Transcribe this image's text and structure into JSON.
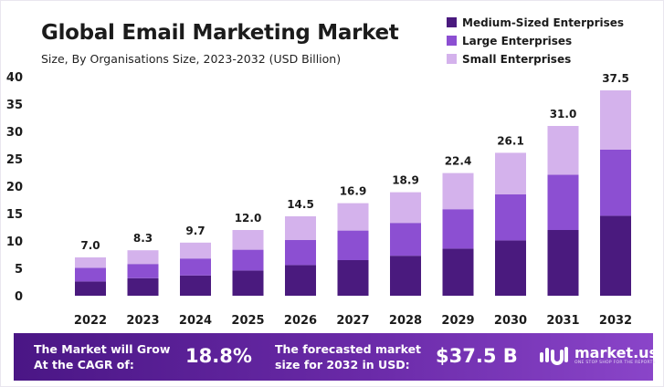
{
  "header": {
    "title": "Global Email Marketing Market",
    "subtitle": "Size, By Organisations Size, 2023-2032 (USD Billion)"
  },
  "colors": {
    "medium": "#4a1a7e",
    "large": "#8c4fd2",
    "small": "#d4b2ec",
    "banner_start": "#4a1685",
    "banner_end": "#8a45c9"
  },
  "chart_data": {
    "type": "bar",
    "stacked": true,
    "categories": [
      "2022",
      "2023",
      "2024",
      "2025",
      "2026",
      "2027",
      "2028",
      "2029",
      "2030",
      "2031",
      "2032"
    ],
    "series": [
      {
        "name": "Medium-Sized Enterprises",
        "color": "#4a1a7e",
        "values": [
          2.6,
          3.2,
          3.7,
          4.6,
          5.6,
          6.5,
          7.3,
          8.6,
          10.1,
          12.0,
          14.6
        ]
      },
      {
        "name": "Large Enterprises",
        "color": "#8c4fd2",
        "values": [
          2.5,
          2.6,
          3.1,
          3.8,
          4.6,
          5.4,
          6.0,
          7.2,
          8.4,
          10.1,
          12.1
        ]
      },
      {
        "name": "Small Enterprises",
        "color": "#d4b2ec",
        "values": [
          1.9,
          2.5,
          2.9,
          3.6,
          4.3,
          5.0,
          5.6,
          6.6,
          7.6,
          8.9,
          10.8
        ]
      }
    ],
    "totals": [
      "7.0",
      "8.3",
      "9.7",
      "12.0",
      "14.5",
      "16.9",
      "18.9",
      "22.4",
      "26.1",
      "31.0",
      "37.5"
    ],
    "yticks": [
      "0",
      "5",
      "10",
      "15",
      "20",
      "25",
      "30",
      "35",
      "40"
    ],
    "ylim": [
      0,
      40
    ],
    "legend_position": "top-right",
    "grid": false
  },
  "banner": {
    "cagr_text": "The Market will Grow\nAt the CAGR of:",
    "cagr_value": "18.8%",
    "forecast_text": "The forecasted market\nsize for 2032 in USD:",
    "forecast_value": "$37.5 B",
    "logo_name": "market.us",
    "logo_tagline": "ONE STOP SHOP FOR THE REPORTS"
  }
}
